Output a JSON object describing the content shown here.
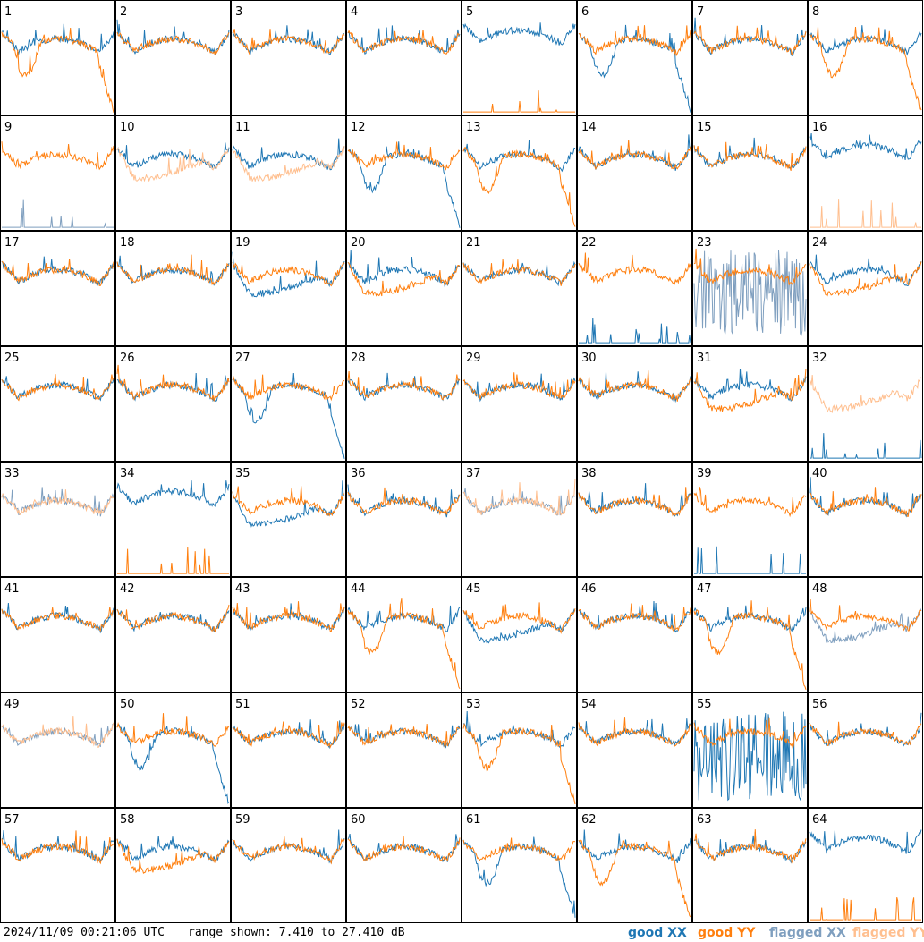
{
  "footer": {
    "timestamp": "2024/11/09 00:21:06 UTC",
    "range_text": "range shown: 7.410 to 27.410 dB"
  },
  "colors": {
    "good_xx": "#1f77b4",
    "good_yy": "#ff7f0e",
    "flagged_xx": "#7f9fbf",
    "flagged_yy": "#ffbf8f"
  },
  "legend": [
    {
      "label": "good XX",
      "color": "#1f77b4"
    },
    {
      "label": "good YY",
      "color": "#ff7f0e"
    },
    {
      "label": "flagged XX",
      "color": "#7f9fbf"
    },
    {
      "label": "flagged YY",
      "color": "#ffbf8f"
    }
  ],
  "chart_data": {
    "type": "line",
    "layout": "small-multiples 8x8",
    "ylim": [
      7.41,
      27.41
    ],
    "y_unit": "dB",
    "panels": [
      {
        "id": "1",
        "xx": "good",
        "yy": "good",
        "xx_shape": "normal",
        "yy_shape": "rolloff"
      },
      {
        "id": "2",
        "xx": "good",
        "yy": "good",
        "xx_shape": "normal",
        "yy_shape": "normal"
      },
      {
        "id": "3",
        "xx": "good",
        "yy": "good",
        "xx_shape": "normal",
        "yy_shape": "normal"
      },
      {
        "id": "4",
        "xx": "good",
        "yy": "good",
        "xx_shape": "normal",
        "yy_shape": "normal"
      },
      {
        "id": "5",
        "xx": "good",
        "yy": "good",
        "xx_shape": "high",
        "yy_shape": "flat"
      },
      {
        "id": "6",
        "xx": "good",
        "yy": "good",
        "xx_shape": "rolloff",
        "yy_shape": "normal"
      },
      {
        "id": "7",
        "xx": "good",
        "yy": "good",
        "xx_shape": "normal",
        "yy_shape": "normal"
      },
      {
        "id": "8",
        "xx": "good",
        "yy": "good",
        "xx_shape": "normal",
        "yy_shape": "rolloff"
      },
      {
        "id": "9",
        "xx": "flagged",
        "yy": "good",
        "xx_shape": "flat",
        "yy_shape": "normal"
      },
      {
        "id": "10",
        "xx": "good",
        "yy": "flagged",
        "xx_shape": "normal",
        "yy_shape": "low"
      },
      {
        "id": "11",
        "xx": "good",
        "yy": "flagged",
        "xx_shape": "normal",
        "yy_shape": "low"
      },
      {
        "id": "12",
        "xx": "good",
        "yy": "good",
        "xx_shape": "rolloff",
        "yy_shape": "normal"
      },
      {
        "id": "13",
        "xx": "good",
        "yy": "good",
        "xx_shape": "normal",
        "yy_shape": "rolloff"
      },
      {
        "id": "14",
        "xx": "good",
        "yy": "good",
        "xx_shape": "normal",
        "yy_shape": "normal"
      },
      {
        "id": "15",
        "xx": "good",
        "yy": "good",
        "xx_shape": "normal",
        "yy_shape": "normal"
      },
      {
        "id": "16",
        "xx": "good",
        "yy": "flagged",
        "xx_shape": "high",
        "yy_shape": "flat"
      },
      {
        "id": "17",
        "xx": "good",
        "yy": "good",
        "xx_shape": "normal",
        "yy_shape": "normal"
      },
      {
        "id": "18",
        "xx": "good",
        "yy": "good",
        "xx_shape": "normal",
        "yy_shape": "normal"
      },
      {
        "id": "19",
        "xx": "good",
        "yy": "good",
        "xx_shape": "low",
        "yy_shape": "normal"
      },
      {
        "id": "20",
        "xx": "good",
        "yy": "good",
        "xx_shape": "normal",
        "yy_shape": "low"
      },
      {
        "id": "21",
        "xx": "good",
        "yy": "good",
        "xx_shape": "normal",
        "yy_shape": "normal"
      },
      {
        "id": "22",
        "xx": "good",
        "yy": "good",
        "xx_shape": "flat",
        "yy_shape": "normal"
      },
      {
        "id": "23",
        "xx": "flagged",
        "yy": "good",
        "xx_shape": "noisy",
        "yy_shape": "normal"
      },
      {
        "id": "24",
        "xx": "good",
        "yy": "good",
        "xx_shape": "normal",
        "yy_shape": "low"
      },
      {
        "id": "25",
        "xx": "good",
        "yy": "good",
        "xx_shape": "normal",
        "yy_shape": "normal"
      },
      {
        "id": "26",
        "xx": "good",
        "yy": "good",
        "xx_shape": "normal",
        "yy_shape": "normal"
      },
      {
        "id": "27",
        "xx": "good",
        "yy": "good",
        "xx_shape": "rolloff",
        "yy_shape": "normal"
      },
      {
        "id": "28",
        "xx": "good",
        "yy": "good",
        "xx_shape": "normal",
        "yy_shape": "normal"
      },
      {
        "id": "29",
        "xx": "good",
        "yy": "good",
        "xx_shape": "normal",
        "yy_shape": "normal"
      },
      {
        "id": "30",
        "xx": "good",
        "yy": "good",
        "xx_shape": "normal",
        "yy_shape": "normal"
      },
      {
        "id": "31",
        "xx": "good",
        "yy": "good",
        "xx_shape": "normal",
        "yy_shape": "low"
      },
      {
        "id": "32",
        "xx": "good",
        "yy": "flagged",
        "xx_shape": "flat",
        "yy_shape": "low"
      },
      {
        "id": "33",
        "xx": "flagged",
        "yy": "flagged",
        "xx_shape": "normal",
        "yy_shape": "normal"
      },
      {
        "id": "34",
        "xx": "good",
        "yy": "good",
        "xx_shape": "high",
        "yy_shape": "flat"
      },
      {
        "id": "35",
        "xx": "good",
        "yy": "good",
        "xx_shape": "low",
        "yy_shape": "normal"
      },
      {
        "id": "36",
        "xx": "good",
        "yy": "good",
        "xx_shape": "normal",
        "yy_shape": "normal"
      },
      {
        "id": "37",
        "xx": "flagged",
        "yy": "flagged",
        "xx_shape": "normal",
        "yy_shape": "normal"
      },
      {
        "id": "38",
        "xx": "good",
        "yy": "good",
        "xx_shape": "normal",
        "yy_shape": "normal"
      },
      {
        "id": "39",
        "xx": "good",
        "yy": "good",
        "xx_shape": "flat",
        "yy_shape": "normal"
      },
      {
        "id": "40",
        "xx": "good",
        "yy": "good",
        "xx_shape": "normal",
        "yy_shape": "normal"
      },
      {
        "id": "41",
        "xx": "good",
        "yy": "good",
        "xx_shape": "normal",
        "yy_shape": "normal"
      },
      {
        "id": "42",
        "xx": "good",
        "yy": "good",
        "xx_shape": "normal",
        "yy_shape": "normal"
      },
      {
        "id": "43",
        "xx": "good",
        "yy": "good",
        "xx_shape": "normal",
        "yy_shape": "normal"
      },
      {
        "id": "44",
        "xx": "good",
        "yy": "good",
        "xx_shape": "normal",
        "yy_shape": "rolloff"
      },
      {
        "id": "45",
        "xx": "good",
        "yy": "good",
        "xx_shape": "low",
        "yy_shape": "normal"
      },
      {
        "id": "46",
        "xx": "good",
        "yy": "good",
        "xx_shape": "normal",
        "yy_shape": "normal"
      },
      {
        "id": "47",
        "xx": "good",
        "yy": "good",
        "xx_shape": "normal",
        "yy_shape": "rolloff"
      },
      {
        "id": "48",
        "xx": "flagged",
        "yy": "good",
        "xx_shape": "low",
        "yy_shape": "normal"
      },
      {
        "id": "49",
        "xx": "flagged",
        "yy": "flagged",
        "xx_shape": "normal",
        "yy_shape": "normal"
      },
      {
        "id": "50",
        "xx": "good",
        "yy": "good",
        "xx_shape": "rolloff",
        "yy_shape": "normal"
      },
      {
        "id": "51",
        "xx": "good",
        "yy": "good",
        "xx_shape": "normal",
        "yy_shape": "normal"
      },
      {
        "id": "52",
        "xx": "good",
        "yy": "good",
        "xx_shape": "normal",
        "yy_shape": "normal"
      },
      {
        "id": "53",
        "xx": "good",
        "yy": "good",
        "xx_shape": "normal",
        "yy_shape": "rolloff"
      },
      {
        "id": "54",
        "xx": "good",
        "yy": "good",
        "xx_shape": "normal",
        "yy_shape": "normal"
      },
      {
        "id": "55",
        "xx": "good",
        "yy": "good",
        "xx_shape": "noisy",
        "yy_shape": "normal"
      },
      {
        "id": "56",
        "xx": "good",
        "yy": "good",
        "xx_shape": "normal",
        "yy_shape": "normal"
      },
      {
        "id": "57",
        "xx": "good",
        "yy": "good",
        "xx_shape": "normal",
        "yy_shape": "normal"
      },
      {
        "id": "58",
        "xx": "good",
        "yy": "good",
        "xx_shape": "normal",
        "yy_shape": "low"
      },
      {
        "id": "59",
        "xx": "good",
        "yy": "good",
        "xx_shape": "normal",
        "yy_shape": "normal"
      },
      {
        "id": "60",
        "xx": "good",
        "yy": "good",
        "xx_shape": "normal",
        "yy_shape": "normal"
      },
      {
        "id": "61",
        "xx": "good",
        "yy": "good",
        "xx_shape": "rolloff",
        "yy_shape": "normal"
      },
      {
        "id": "62",
        "xx": "good",
        "yy": "good",
        "xx_shape": "normal",
        "yy_shape": "rolloff"
      },
      {
        "id": "63",
        "xx": "good",
        "yy": "good",
        "xx_shape": "normal",
        "yy_shape": "normal"
      },
      {
        "id": "64",
        "xx": "good",
        "yy": "good",
        "xx_shape": "high",
        "yy_shape": "flat"
      }
    ]
  }
}
